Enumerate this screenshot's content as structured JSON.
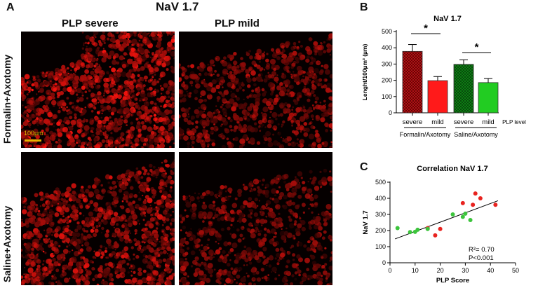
{
  "panel_a": {
    "letter": "A",
    "title": "NaV 1.7",
    "columns": [
      "PLP severe",
      "PLP mild"
    ],
    "rows": [
      "Formalin+Axotomy",
      "Saline+Axotomy"
    ],
    "scale_bar_label": "100µm"
  },
  "panel_b": {
    "letter": "B"
  },
  "panel_c": {
    "letter": "C"
  },
  "chart_data": [
    {
      "type": "bar",
      "title": "NaV 1.7",
      "ylabel": "Lenght/100µm³ (µm)",
      "ylim": [
        0,
        500
      ],
      "yticks": [
        0,
        100,
        200,
        300,
        400,
        500
      ],
      "categories": [
        "severe",
        "mild",
        "severe",
        "mild"
      ],
      "groups": [
        "Formalin/Axotomy",
        "Saline/Axotomy"
      ],
      "x_extra_label": "PLP level",
      "values": [
        378,
        198,
        298,
        186
      ],
      "errors": [
        42,
        25,
        28,
        25
      ],
      "colors": [
        "#c0151a",
        "#ff1a1a",
        "#0e8a16",
        "#22cc22"
      ],
      "patterns": [
        "hatch",
        "solid",
        "hatch",
        "solid"
      ],
      "significance": [
        "*",
        "*"
      ]
    },
    {
      "type": "scatter",
      "title": "Correlation NaV 1.7",
      "xlabel": "PLP Score",
      "ylabel": "NaV 1.7",
      "xlim": [
        0,
        50
      ],
      "ylim": [
        0,
        500
      ],
      "xticks": [
        0,
        10,
        20,
        30,
        40,
        50
      ],
      "yticks": [
        0,
        100,
        200,
        300,
        400,
        500
      ],
      "series": [
        {
          "color": "#e8231f",
          "points": [
            [
              15,
              215
            ],
            [
              18,
              170
            ],
            [
              20,
              210
            ],
            [
              29,
              370
            ],
            [
              33,
              360
            ],
            [
              34,
              430
            ],
            [
              36,
              400
            ],
            [
              42,
              360
            ]
          ]
        },
        {
          "color": "#3cc43c",
          "points": [
            [
              3,
              215
            ],
            [
              8,
              190
            ],
            [
              10,
              192
            ],
            [
              11,
              205
            ],
            [
              15,
              210
            ],
            [
              25,
              300
            ],
            [
              29,
              285
            ],
            [
              30,
              305
            ],
            [
              32,
              265
            ]
          ]
        }
      ],
      "regression": {
        "x": [
          2,
          43
        ],
        "y": [
          148,
          385
        ]
      },
      "annotation_r2": "R²= 0.70",
      "annotation_p": "P<0.001"
    }
  ]
}
